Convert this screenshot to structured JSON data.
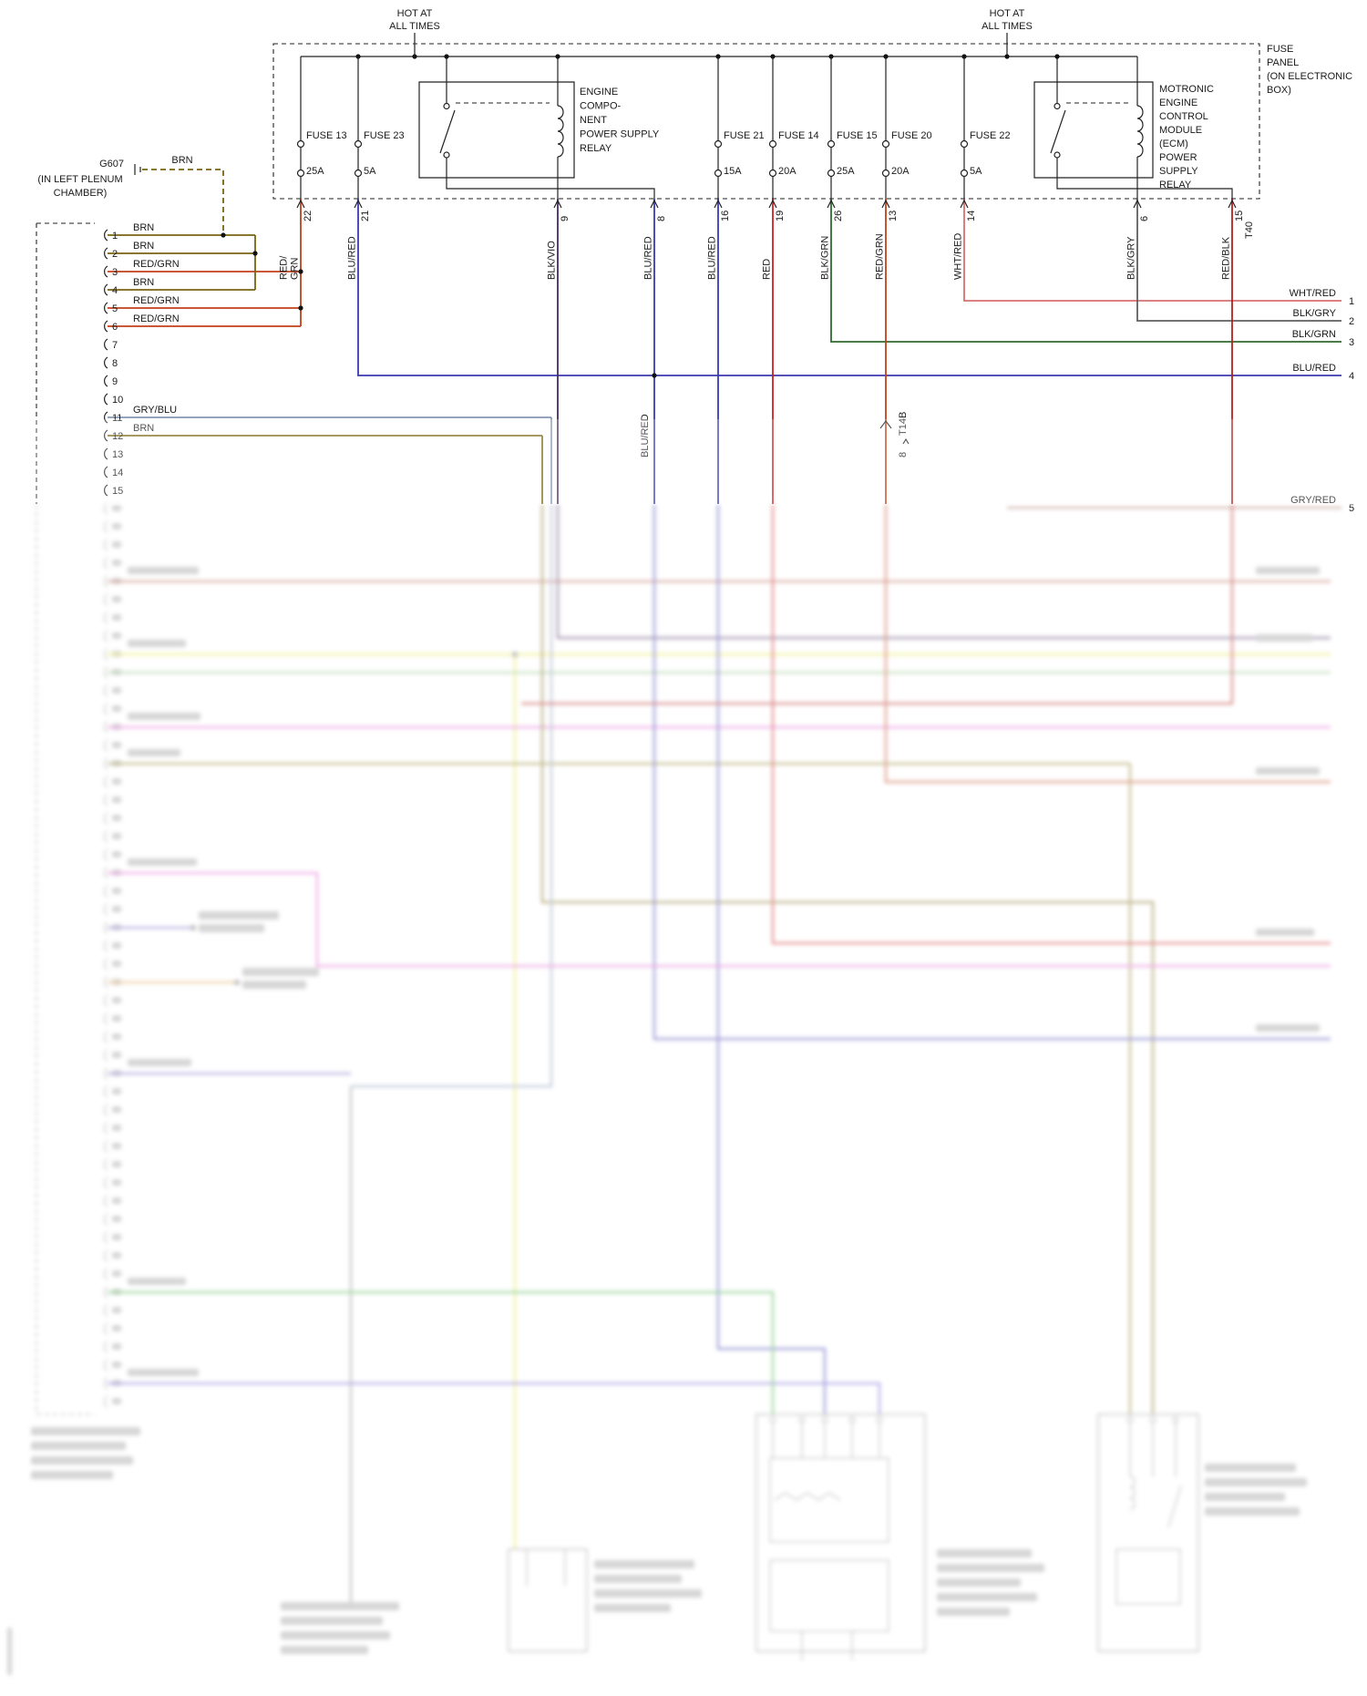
{
  "colors": {
    "brn": "#7a6410",
    "red_grn": "#c2401a",
    "blu_red": "#3a3ab0",
    "blk_vio": "#452b5e",
    "red": "#cc2020",
    "blk_grn": "#2e6b2e",
    "wht_red": "#d87070",
    "blk_gry": "#5f5f5f",
    "red_blk": "#b52020",
    "gry_blu": "#8696b4",
    "gry_red": "#a06858"
  },
  "feeds": [
    {
      "lines": [
        "HOT AT",
        "ALL TIMES"
      ]
    },
    {
      "lines": [
        "HOT AT",
        "ALL TIMES"
      ]
    }
  ],
  "fuse_panel": {
    "label_lines": [
      "FUSE",
      "PANEL",
      "(ON ELECTRONIC",
      "BOX)"
    ],
    "connector": "T40",
    "fuses": [
      {
        "name": "FUSE 13",
        "amps": "25A"
      },
      {
        "name": "FUSE 23",
        "amps": "5A"
      },
      {
        "name": "FUSE 21",
        "amps": "15A"
      },
      {
        "name": "FUSE 14",
        "amps": "20A"
      },
      {
        "name": "FUSE 15",
        "amps": "25A"
      },
      {
        "name": "FUSE 20",
        "amps": "20A"
      },
      {
        "name": "FUSE 22",
        "amps": "5A"
      }
    ],
    "relay1_lines": [
      "ENGINE",
      "COMPO-",
      "NENT",
      "POWER SUPPLY",
      "RELAY"
    ],
    "relay2_lines": [
      "MOTRONIC",
      "ENGINE",
      "CONTROL",
      "MODULE",
      "(ECM)",
      "POWER",
      "SUPPLY",
      "RELAY"
    ]
  },
  "terminals": [
    {
      "pin": "22",
      "color": "RED/GRN",
      "lines": [
        "RED/",
        "GRN"
      ]
    },
    {
      "pin": "21",
      "color": "BLU/RED"
    },
    {
      "pin": "9",
      "color": "BLK/VIO"
    },
    {
      "pin": "8",
      "color": "BLU/RED"
    },
    {
      "pin": "16",
      "color": "BLU/RED"
    },
    {
      "pin": "19",
      "color": "RED"
    },
    {
      "pin": "26",
      "color": "BLK/GRN"
    },
    {
      "pin": "13",
      "color": "RED/GRN"
    },
    {
      "pin": "14",
      "color": "WHT/RED"
    },
    {
      "pin": "6",
      "color": "BLK/GRY"
    },
    {
      "pin": "15",
      "color": "RED/BLK"
    }
  ],
  "inline_labels": {
    "wire": "BLU/RED",
    "t14b_pin": "8",
    "t14b": "T14B"
  },
  "ground": {
    "id": "G607",
    "location_lines": [
      "(IN LEFT PLENUM",
      "CHAMBER)"
    ],
    "wire_label": "BRN"
  },
  "left_connector": {
    "pins": [
      {
        "num": "1",
        "wire": "BRN"
      },
      {
        "num": "2",
        "wire": "BRN"
      },
      {
        "num": "3",
        "wire": "RED/GRN"
      },
      {
        "num": "4",
        "wire": "BRN"
      },
      {
        "num": "5",
        "wire": "RED/GRN"
      },
      {
        "num": "6",
        "wire": "RED/GRN"
      },
      {
        "num": "7",
        "wire": ""
      },
      {
        "num": "8",
        "wire": ""
      },
      {
        "num": "9",
        "wire": ""
      },
      {
        "num": "10",
        "wire": ""
      },
      {
        "num": "11",
        "wire": "GRY/BLU"
      },
      {
        "num": "12",
        "wire": "BRN"
      },
      {
        "num": "13",
        "wire": ""
      },
      {
        "num": "14",
        "wire": ""
      },
      {
        "num": "15",
        "wire": ""
      }
    ]
  },
  "right_leads": [
    {
      "num": "1",
      "color": "WHT/RED"
    },
    {
      "num": "2",
      "color": "BLK/GRY"
    },
    {
      "num": "3",
      "color": "BLK/GRN"
    },
    {
      "num": "4",
      "color": "BLU/RED"
    },
    {
      "num": "5",
      "color": "GRY/RED"
    }
  ]
}
